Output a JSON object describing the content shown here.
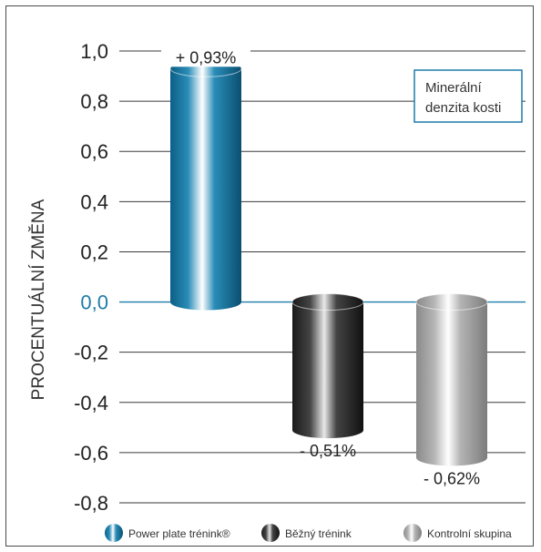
{
  "chart_data": {
    "type": "bar",
    "ylabel": "PROCENTUÁLNÍ ZMĚNA",
    "ylim": [
      -0.8,
      1.0
    ],
    "yticks": [
      "1,0",
      "0,8",
      "0,6",
      "0,4",
      "0,2",
      "0,0",
      "-0,2",
      "-0,4",
      "-0,6",
      "-0,8"
    ],
    "grid": true,
    "annotation": [
      "Minerální",
      "denzita kosti"
    ],
    "legend_position": "bottom",
    "series": [
      {
        "name": "Power plate trénink®",
        "value": 0.93,
        "label": "+ 0,93%",
        "color": "#0e6e9a"
      },
      {
        "name": "Běžný trénink",
        "value": -0.51,
        "label": "- 0,51%",
        "color": "#2b2b2b"
      },
      {
        "name": "Kontrolní skupina",
        "value": -0.62,
        "label": "- 0,62%",
        "color": "#9a9a9a"
      }
    ]
  }
}
